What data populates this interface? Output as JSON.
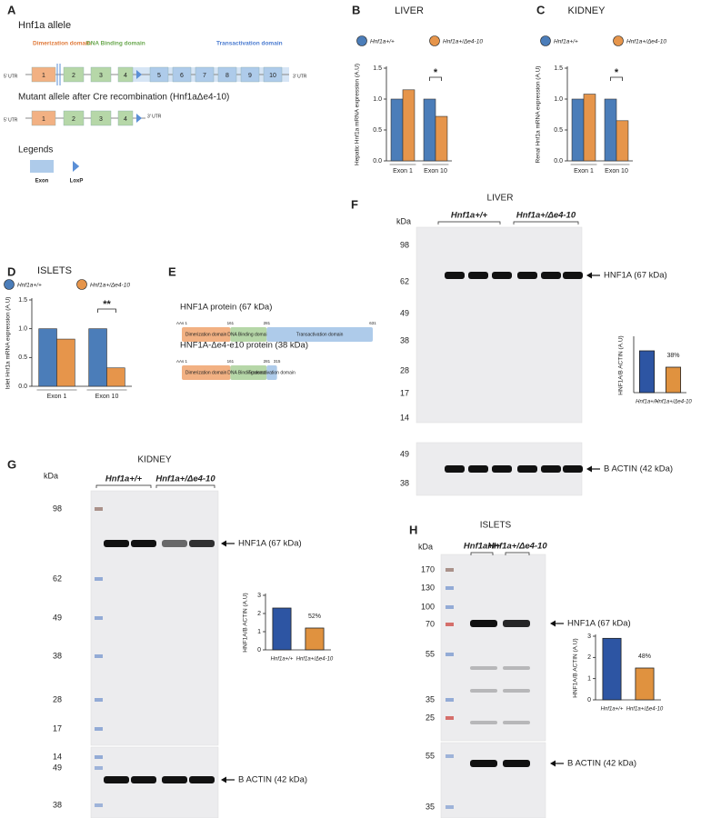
{
  "panel_labels": [
    "A",
    "B",
    "C",
    "D",
    "E",
    "F",
    "G",
    "H"
  ],
  "gene_diagram": {
    "title": "Hnf1a allele",
    "domains": [
      "Dimerization domain",
      "DNA Binding domain",
      "Transactivation domain"
    ],
    "utr5": "5' UTR",
    "utr3": "3' UTR",
    "exons": [
      1,
      2,
      3,
      4,
      5,
      6,
      7,
      8,
      9,
      10
    ],
    "mutant_title": "Mutant allele after Cre recombination (Hnf1aΔe4-10)",
    "mutant_utr5": "5' UTR",
    "mutant_exons": [
      1,
      2,
      3,
      4
    ],
    "mutant_utr3": "3' UTR",
    "legend_title": "Legends",
    "legend_items": [
      "Exon",
      "LoxP"
    ]
  },
  "protein_diagram": {
    "proteins": [
      {
        "name": "HNF1A protein (67 kDa)",
        "start": "AAs 1",
        "boundaries": [
          161,
          281,
          631
        ],
        "domains": [
          "Dimerization domain",
          "DNA Binding domain",
          "Transactivation domain"
        ]
      },
      {
        "name": "HNF1A-Δe4-e10 protein (38 kDa)",
        "start": "AAs 1",
        "boundaries": [
          161,
          281,
          315
        ],
        "domains": [
          "Dimerization domain",
          "DNA Binding domain",
          "Transactivation domain"
        ]
      }
    ]
  },
  "chart_data": [
    {
      "type": "bar",
      "title": "LIVER",
      "ylabel": "Hepatic Hnf1a mRNA expression (A.U)",
      "categories": [
        "Exon 1",
        "Exon 10"
      ],
      "series": [
        {
          "name": "Hnf1a+/+",
          "color": "#4b7db9",
          "values": [
            1.0,
            1.0
          ]
        },
        {
          "name": "Hnf1a+/Δe4-10",
          "color": "#e6954b",
          "values": [
            1.15,
            0.72
          ]
        }
      ],
      "ylim": [
        0,
        1.5
      ],
      "yticks": [
        {
          "value": 0,
          "label": "0.0"
        },
        0.5,
        {
          "value": 1,
          "label": "1.0"
        },
        1.5
      ],
      "annotation": "*"
    },
    {
      "type": "bar",
      "title": "KIDNEY",
      "ylabel": "Renal Hnf1a mRNA expression (A.U)",
      "categories": [
        "Exon 1",
        "Exon 10"
      ],
      "series": [
        {
          "name": "Hnf1a+/+",
          "color": "#4b7db9",
          "values": [
            1.0,
            1.0
          ]
        },
        {
          "name": "Hnf1a+/Δe4-10",
          "color": "#e6954b",
          "values": [
            1.08,
            0.65
          ]
        }
      ],
      "ylim": [
        0,
        1.5
      ],
      "yticks": [
        {
          "value": 0,
          "label": "0.0"
        },
        0.5,
        {
          "value": 1,
          "label": "1.0"
        },
        1.5
      ],
      "annotation": "*"
    },
    {
      "type": "bar",
      "title": "ISLETS",
      "ylabel": "Islet Hnf1a mRNA expression (A.U)",
      "categories": [
        "Exon 1",
        "Exon 10"
      ],
      "series": [
        {
          "name": "Hnf1a+/+",
          "color": "#4b7db9",
          "values": [
            1.0,
            1.0
          ]
        },
        {
          "name": "Hnf1a+/Δe4-10",
          "color": "#e6954b",
          "values": [
            0.82,
            0.32
          ]
        }
      ],
      "ylim": [
        0,
        1.5
      ],
      "yticks": [
        {
          "value": 0,
          "label": "0.0"
        },
        0.5,
        {
          "value": 1,
          "label": "1.0"
        },
        1.5
      ],
      "annotation": "**"
    },
    {
      "type": "bar",
      "ylabel": "HNF1A/B ACTIN (A.U)",
      "categories": [
        "Hnf1a+/+",
        "Hnf1a+/Δe4-10"
      ],
      "values": [
        2.3,
        1.4
      ],
      "colors": [
        "#2d55a3",
        "#e0923f"
      ],
      "ylim": [
        0,
        3
      ],
      "annotation": "38%"
    },
    {
      "type": "bar",
      "ylabel": "HNF1A/B ACTIN (A.U)",
      "categories": [
        "Hnf1a+/+",
        "Hnf1a+/Δe4-10"
      ],
      "values": [
        2.3,
        1.2
      ],
      "colors": [
        "#2d55a3",
        "#e0923f"
      ],
      "ylim": [
        0,
        3
      ],
      "yticks": [
        0,
        1,
        2,
        3
      ],
      "annotation": "52%"
    },
    {
      "type": "bar",
      "ylabel": "HNF1A/B ACTIN (A.U)",
      "categories": [
        "Hnf1a+/+",
        "Hnf1a+/Δe4-10"
      ],
      "values": [
        2.9,
        1.5
      ],
      "colors": [
        "#2d55a3",
        "#e0923f"
      ],
      "ylim": [
        0,
        3
      ],
      "yticks": [
        0,
        1,
        2,
        3
      ],
      "annotation": "48%"
    }
  ],
  "blots": [
    {
      "title": "LIVER",
      "unit": "kDa",
      "groups": [
        "Hnf1a+/+",
        "Hnf1a+/Δe4-10"
      ],
      "markers": [
        98,
        62,
        49,
        38,
        28,
        17,
        14
      ],
      "lower_markers": [
        49,
        38
      ],
      "band_labels": [
        "HNF1A (67 kDa)",
        "B ACTIN (42 kDa)"
      ]
    },
    {
      "title": "KIDNEY",
      "unit": "kDa",
      "groups": [
        "Hnf1a+/+",
        "Hnf1a+/Δe4-10"
      ],
      "markers": [
        98,
        62,
        49,
        38,
        28,
        17,
        14
      ],
      "lower_markers": [
        49,
        38
      ],
      "band_labels": [
        "HNF1A (67 kDa)",
        "B ACTIN (42 kDa)"
      ]
    },
    {
      "title": "ISLETS",
      "unit": "kDa",
      "groups": [
        "Hnf1a+/+",
        "Hnf1a+/Δe4-10"
      ],
      "markers": [
        170,
        130,
        100,
        70,
        55,
        35,
        25
      ],
      "lower_markers": [
        55,
        35
      ],
      "band_labels": [
        "HNF1A (67 kDa)",
        "B ACTIN (42 kDa)"
      ]
    }
  ]
}
